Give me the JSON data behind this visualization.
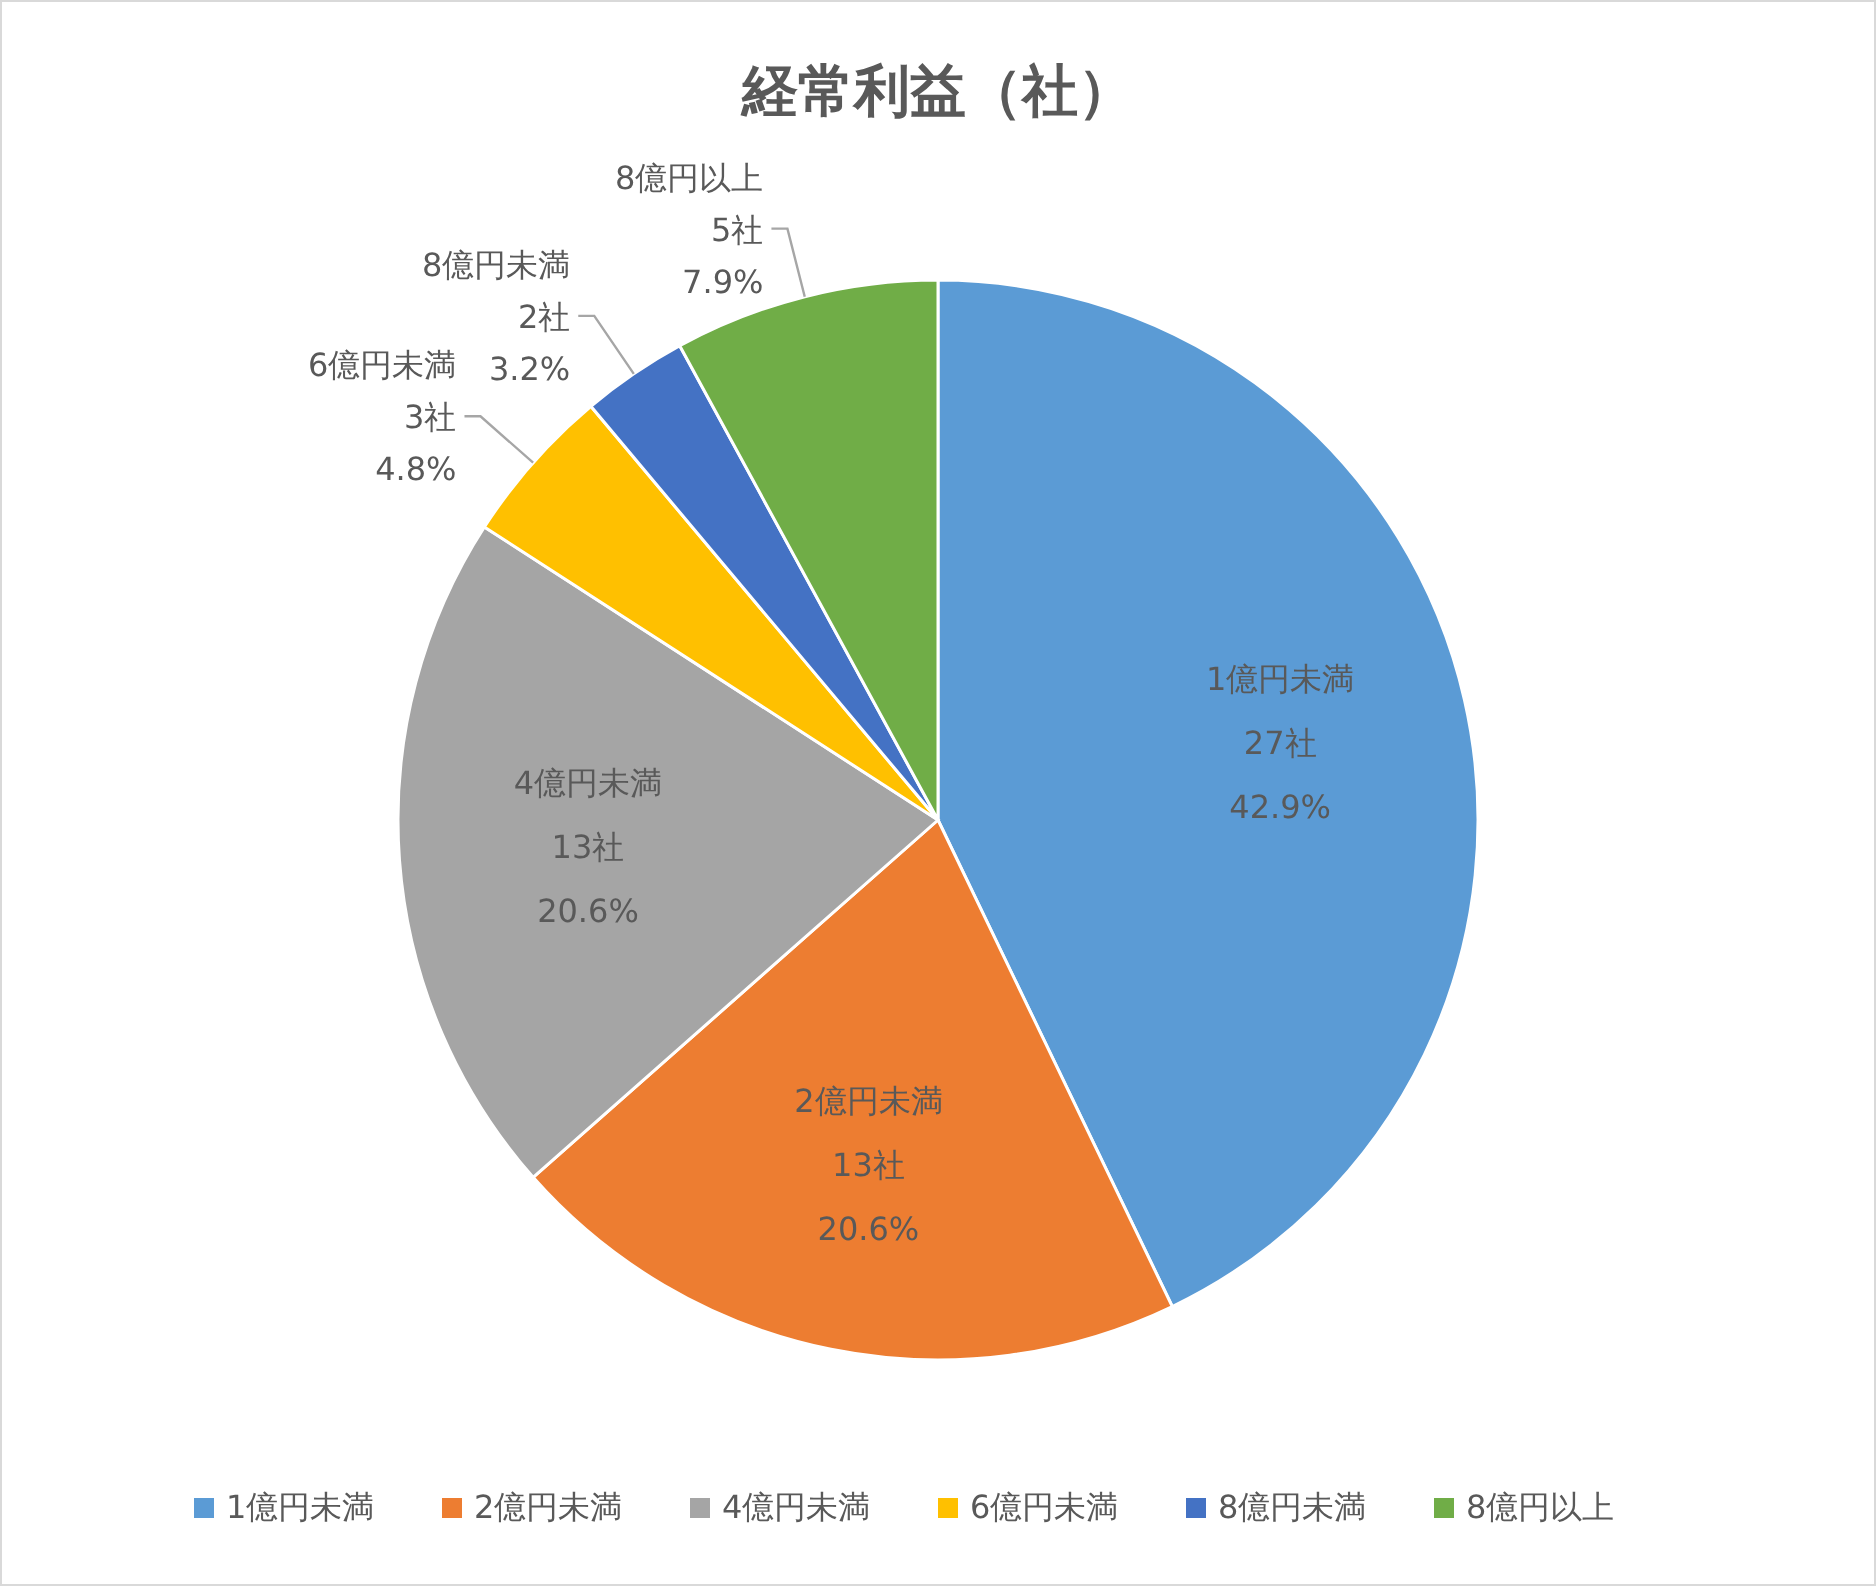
{
  "chart_data": {
    "type": "pie",
    "title": "経常利益（社）",
    "categories": [
      "1億円未満",
      "2億円未満",
      "4億円未満",
      "6億円未満",
      "8億円未満",
      "8億円以上"
    ],
    "values": [
      27,
      13,
      13,
      3,
      2,
      5
    ],
    "value_labels": [
      "27社\n42.9%",
      "13社\n20.6%",
      "13社\n20.6%",
      "3社\n4.8%",
      "2社\n3.2%",
      "5社\n7.9%"
    ],
    "colors": [
      "#5b9bd5",
      "#ed7d31",
      "#a5a5a5",
      "#ffc000",
      "#4472c4",
      "#70ad47"
    ],
    "legend": "bottom"
  }
}
